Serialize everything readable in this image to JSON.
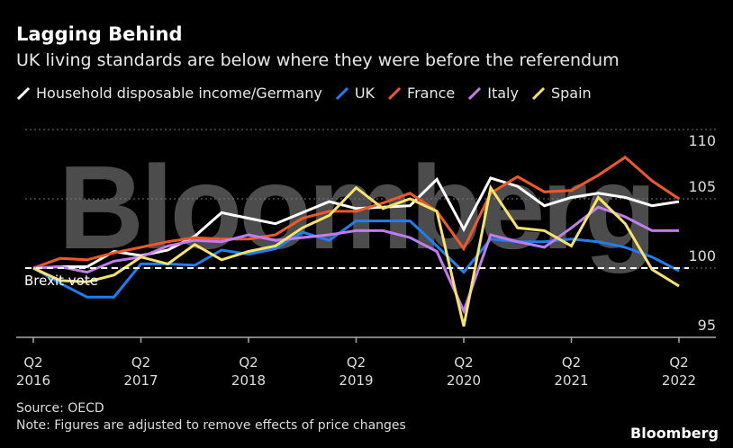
{
  "header": {
    "title": "Lagging Behind",
    "subtitle": "UK living standards are below where they were before the referendum"
  },
  "footer": {
    "source": "Source: OECD",
    "note": "Note: Figures are adjusted to remove effects of price changes",
    "logo": "Bloomberg"
  },
  "watermark": "Bloomberg",
  "chart_data": {
    "type": "line",
    "title": "Lagging Behind",
    "subtitle": "UK living standards are below where they were before the referendum",
    "ylim": [
      95,
      110
    ],
    "yticks": [
      "95",
      "100",
      "105",
      "110"
    ],
    "xticks": [
      {
        "q": "Q2",
        "y": "2016"
      },
      {
        "q": "Q2",
        "y": "2017"
      },
      {
        "q": "Q2",
        "y": "2018"
      },
      {
        "q": "Q2",
        "y": "2019"
      },
      {
        "q": "Q2",
        "y": "2020"
      },
      {
        "q": "Q2",
        "y": "2021"
      },
      {
        "q": "Q2",
        "y": "2022"
      }
    ],
    "x": [
      "Q2 2016",
      "Q3 2016",
      "Q4 2016",
      "Q1 2017",
      "Q2 2017",
      "Q3 2017",
      "Q4 2017",
      "Q1 2018",
      "Q2 2018",
      "Q3 2018",
      "Q4 2018",
      "Q1 2019",
      "Q2 2019",
      "Q3 2019",
      "Q4 2019",
      "Q1 2020",
      "Q2 2020",
      "Q3 2020",
      "Q4 2020",
      "Q1 2021",
      "Q2 2021",
      "Q3 2021",
      "Q4 2021",
      "Q1 2022",
      "Q2 2022"
    ],
    "reference_line": {
      "value": 100,
      "label": "Brexit vote"
    },
    "grid": "horizontal dotted",
    "legend": "top",
    "series": [
      {
        "name": "Household disposable income/Germany",
        "color": "#ffffff",
        "values": [
          100,
          100.1,
          100.1,
          101.2,
          100.9,
          101.3,
          102.3,
          104.0,
          103.6,
          103.2,
          104.0,
          104.8,
          104.3,
          104.4,
          104.5,
          106.4,
          102.8,
          106.5,
          105.9,
          104.5,
          105.1,
          105.4,
          105.1,
          104.5,
          104.8
        ]
      },
      {
        "name": "UK",
        "color": "#1f7ef0",
        "values": [
          100,
          98.9,
          97.9,
          97.9,
          100.3,
          100.3,
          100.2,
          101.3,
          101.0,
          101.4,
          102.6,
          102.0,
          103.4,
          103.4,
          103.4,
          101.6,
          99.7,
          102.1,
          101.9,
          101.9,
          102.1,
          101.9,
          101.5,
          100.8,
          99.8
        ]
      },
      {
        "name": "France",
        "color": "#f0582a",
        "values": [
          100,
          100.7,
          100.6,
          101.1,
          101.5,
          101.9,
          102.2,
          102.1,
          102.1,
          102.4,
          103.6,
          104.1,
          104.1,
          104.7,
          105.4,
          104.1,
          101.4,
          105.4,
          106.6,
          105.5,
          105.6,
          106.7,
          108.0,
          106.3,
          105.0
        ]
      },
      {
        "name": "Italy",
        "color": "#c07cf0",
        "values": [
          100,
          100.1,
          99.7,
          100.5,
          100.8,
          101.6,
          102.0,
          101.9,
          102.4,
          102.0,
          102.2,
          102.4,
          102.7,
          102.7,
          102.2,
          101.2,
          96.9,
          102.4,
          101.9,
          101.5,
          102.9,
          104.4,
          103.7,
          102.7,
          102.7
        ]
      },
      {
        "name": "Spain",
        "color": "#f5e36a",
        "values": [
          100,
          99.1,
          99.0,
          99.5,
          100.8,
          100.3,
          101.7,
          100.6,
          101.2,
          101.6,
          102.9,
          103.8,
          105.8,
          104.3,
          105.0,
          104.1,
          95.8,
          105.8,
          102.9,
          102.7,
          101.6,
          105.1,
          103.2,
          99.9,
          98.7
        ]
      }
    ]
  }
}
